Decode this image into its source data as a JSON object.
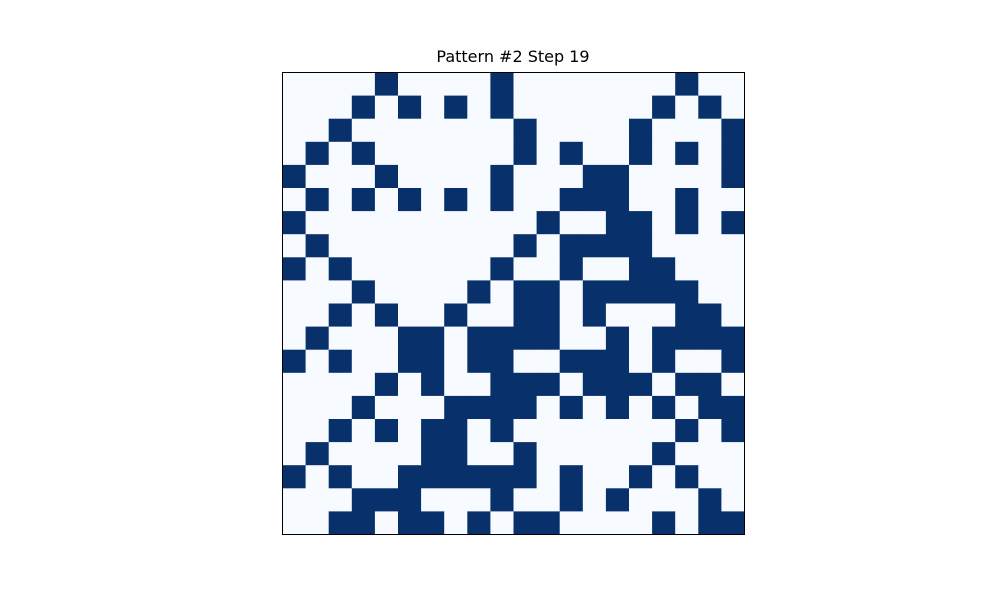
{
  "chart_data": {
    "type": "heatmap",
    "title": "Pattern #2 Step 19",
    "xlabel": "",
    "ylabel": "",
    "rows": 20,
    "cols": 20,
    "colormap": "Blues",
    "colors": {
      "off": "#f7fbff",
      "on": "#08306b",
      "frame": "#000000"
    },
    "axes_ticks": false,
    "grid": [
      "....1....1.......1..",
      "...1.1.1.1......1.1.",
      "..1.......1....1...1",
      ".1.1......1.1..1.1.1",
      "1...1....1...11....1",
      ".1.1.1.1.1..111..1..",
      "1..........1..11.1.1",
      ".1........1.1111....",
      "1.1......1..1..11...",
      "...1....1.11.11111..",
      "..1.1..1..11.1...11.",
      ".1...11.1111..1.1111",
      "1.1..11.11..111.1..1",
      "....1.1..111.111.11.",
      "...1...1111.1.1.1.11",
      "..1.1.11.1.......1.1",
      ".1....11..1.....1...",
      "1.1..111111.1..1.1..",
      "...111...1..1.1...1.",
      "..11.11.1.11....1.11"
    ]
  }
}
